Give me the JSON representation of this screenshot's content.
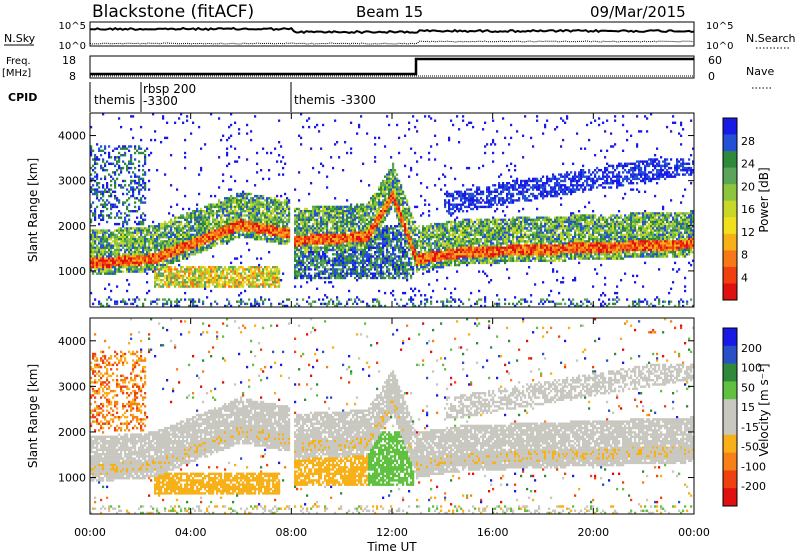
{
  "header": {
    "station": "Blackstone (fitACF)",
    "beam": "Beam 15",
    "date": "09/Mar/2015"
  },
  "summary_panels": {
    "nsky_label": "N.Sky",
    "nsearch_label": "N.Search",
    "nsky_ticks": [
      "10^5",
      "10^0"
    ],
    "freq_label": "Freq.",
    "freq_unit": "[MHz]",
    "freq_ticks": [
      "18",
      "8"
    ],
    "nave_label": "Nave",
    "nave_ticks": [
      "60",
      "0"
    ],
    "cpid_label": "CPID",
    "cpid_segments": [
      {
        "start_hour": 0,
        "name": "themis",
        "id": ""
      },
      {
        "start_hour": 2,
        "name": "rbsp 200",
        "id": "-3300"
      },
      {
        "start_hour": 8,
        "name": "themis",
        "id": "-3300"
      }
    ]
  },
  "chart_data": [
    {
      "type": "heatmap",
      "name": "power",
      "xlabel": "Time UT",
      "ylabel": "Slant Range [km]",
      "xlim": [
        0,
        24
      ],
      "ylim": [
        200,
        4500
      ],
      "yticks": [
        1000,
        2000,
        3000,
        4000
      ],
      "colorbar": {
        "label": "Power [dB]",
        "ticks": [
          "28",
          "24",
          "20",
          "16",
          "12",
          "8",
          "4"
        ],
        "colors": [
          "#1a1ae6",
          "#2450d8",
          "#2e8a3a",
          "#5aa55a",
          "#8cc63c",
          "#c8d828",
          "#f0e020",
          "#f8b018",
          "#f87818",
          "#f04010",
          "#e01010"
        ]
      }
    },
    {
      "type": "heatmap",
      "name": "velocity",
      "xlabel": "Time UT",
      "ylabel": "Slant Range [km]",
      "xlim": [
        0,
        24
      ],
      "ylim": [
        200,
        4500
      ],
      "yticks": [
        1000,
        2000,
        3000,
        4000
      ],
      "xticks": [
        "00:00",
        "04:00",
        "08:00",
        "12:00",
        "16:00",
        "20:00",
        "00:00"
      ],
      "colorbar": {
        "label": "Velocity [m s⁻¹]",
        "ticks": [
          "200",
          "100",
          "50",
          "15",
          "-15",
          "-50",
          "-100",
          "-200"
        ],
        "colors": [
          "#1a1ae6",
          "#2a50c8",
          "#2e8a3a",
          "#60c040",
          "#c8c8c0",
          "#c8c8c0",
          "#f8b018",
          "#f88018",
          "#f04010",
          "#e01010"
        ]
      }
    }
  ]
}
